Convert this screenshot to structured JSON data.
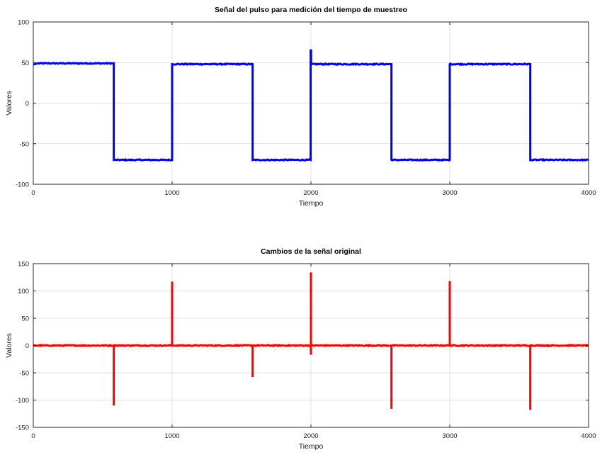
{
  "chart_data": [
    {
      "type": "line",
      "title": "Señal del pulso para medición del tiempo de muestreo",
      "xlabel": "Tiempo",
      "ylabel": "Valores",
      "xlim": [
        0,
        4000
      ],
      "ylim": [
        -100,
        100
      ],
      "xticks": [
        0,
        1000,
        2000,
        3000,
        4000
      ],
      "yticks": [
        -100,
        -50,
        0,
        50,
        100
      ],
      "grid": true,
      "series": [
        {
          "color": "#0000ee",
          "x": [
            0,
            30,
            580,
            580,
            1000,
            1000,
            1580,
            1580,
            1998,
            1998,
            2001,
            2001,
            2003,
            2580,
            2580,
            3000,
            3000,
            3580,
            3580,
            4000
          ],
          "y": [
            47.5,
            49,
            49,
            -70,
            -70,
            48,
            48,
            -70,
            -70,
            65,
            65,
            48,
            48,
            48,
            -70,
            -70,
            48,
            48,
            -70,
            -70
          ]
        }
      ]
    },
    {
      "type": "line",
      "title": "Cambios de la señal original",
      "xlabel": "Tiempo",
      "ylabel": "Valores",
      "xlim": [
        0,
        4000
      ],
      "ylim": [
        -150,
        150
      ],
      "xticks": [
        0,
        1000,
        2000,
        3000,
        4000
      ],
      "yticks": [
        -150,
        -100,
        -50,
        0,
        50,
        100,
        150
      ],
      "grid": true,
      "series": [
        {
          "color": "#ff0000",
          "x": [
            0,
            580,
            580,
            580,
            1000,
            1000,
            1000,
            1580,
            1580,
            1580,
            2000,
            2000,
            2000,
            2000,
            2000,
            2580,
            2580,
            2580,
            3000,
            3000,
            3000,
            3580,
            3580,
            3580,
            4000
          ],
          "y": [
            0,
            0,
            -110,
            0,
            0,
            117,
            0,
            0,
            -58,
            0,
            0,
            134,
            0,
            -17,
            0,
            0,
            -116,
            0,
            0,
            118,
            0,
            0,
            -118,
            0,
            0
          ]
        }
      ]
    }
  ]
}
